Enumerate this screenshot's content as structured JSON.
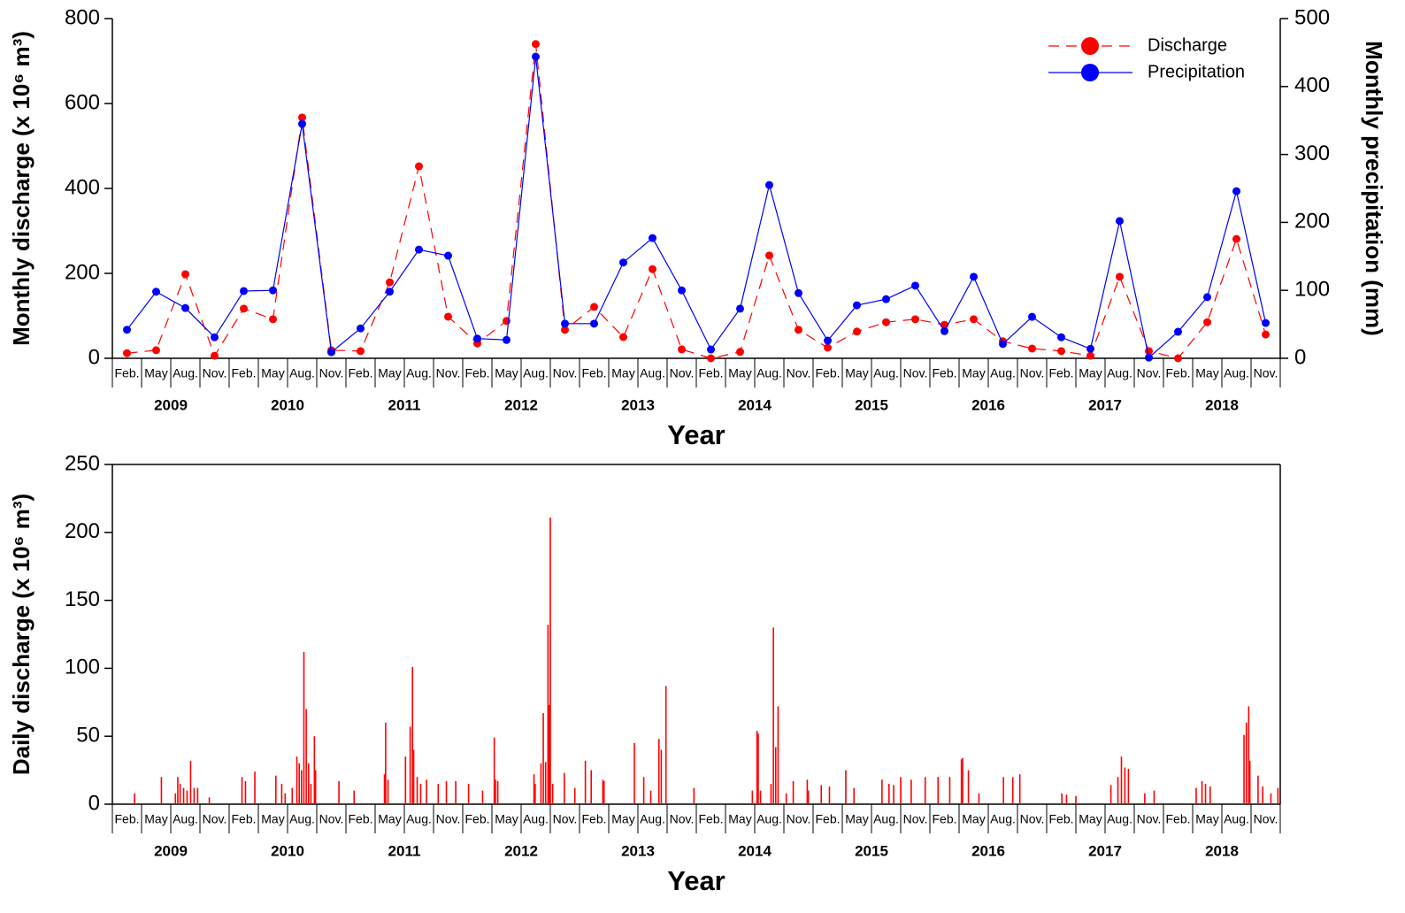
{
  "chart_data": [
    {
      "type": "line",
      "xlabel": "Year",
      "ylabel": "Monthly discharge (x 10⁶ m³)",
      "y2label": "Monthly precipitation (mm)",
      "categories": [
        "Feb.",
        "May",
        "Aug.",
        "Nov.",
        "Feb.",
        "May",
        "Aug.",
        "Nov.",
        "Feb.",
        "May",
        "Aug.",
        "Nov.",
        "Feb.",
        "May",
        "Aug.",
        "Nov.",
        "Feb.",
        "May",
        "Aug.",
        "Nov.",
        "Feb.",
        "May",
        "Aug.",
        "Nov.",
        "Feb.",
        "May",
        "Aug.",
        "Nov.",
        "Feb.",
        "May",
        "Aug.",
        "Nov.",
        "Feb.",
        "May",
        "Aug.",
        "Nov.",
        "Feb.",
        "May",
        "Aug.",
        "Nov."
      ],
      "year_labels": [
        2009,
        2010,
        2011,
        2012,
        2013,
        2014,
        2015,
        2016,
        2017,
        2018
      ],
      "ylim": [
        0,
        800
      ],
      "yticks": [
        0,
        200,
        400,
        600,
        800
      ],
      "y2lim": [
        0,
        500
      ],
      "y2ticks": [
        0,
        100,
        200,
        300,
        400,
        500
      ],
      "legend": "upper right",
      "series": [
        {
          "name": "Discharge",
          "color": "#ff0000",
          "dash": true,
          "values": [
            12,
            19,
            198,
            6,
            117,
            92,
            567,
            19,
            17,
            179,
            452,
            98,
            35,
            88,
            740,
            67,
            121,
            50,
            210,
            21,
            0,
            15,
            242,
            67,
            25,
            63,
            85,
            92,
            79,
            92,
            40,
            23,
            17,
            6,
            192,
            17,
            0,
            85,
            281,
            56
          ]
        },
        {
          "name": "Precipitation",
          "color": "#0000ff",
          "axis": "y2",
          "values": [
            42,
            98,
            74,
            31,
            99,
            100,
            345,
            9,
            44,
            98,
            160,
            151,
            29,
            27,
            444,
            51,
            51,
            141,
            177,
            100,
            13,
            73,
            255,
            96,
            26,
            78,
            87,
            107,
            40,
            120,
            21,
            61,
            31,
            14,
            202,
            1,
            39,
            90,
            246,
            52
          ]
        }
      ]
    },
    {
      "type": "bar",
      "xlabel": "Year",
      "ylabel": "Daily discharge (x 10⁶ m³)",
      "month_labels": [
        "Feb.",
        "May",
        "Aug.",
        "Nov.",
        "Feb.",
        "May",
        "Aug.",
        "Nov.",
        "Feb.",
        "May",
        "Aug.",
        "Nov.",
        "Feb.",
        "May",
        "Aug.",
        "Nov.",
        "Feb.",
        "May",
        "Aug.",
        "Nov.",
        "Feb.",
        "May",
        "Aug.",
        "Nov.",
        "Feb.",
        "May",
        "Aug.",
        "Nov.",
        "Feb.",
        "May",
        "Aug.",
        "Nov.",
        "Feb.",
        "May",
        "Aug.",
        "Nov.",
        "Feb.",
        "May",
        "Aug.",
        "Nov."
      ],
      "year_labels": [
        2009,
        2010,
        2011,
        2012,
        2013,
        2014,
        2015,
        2016,
        2017,
        2018
      ],
      "color": "#ff0000",
      "xlim": [
        2009,
        2019
      ],
      "ylim": [
        0,
        250
      ],
      "yticks": [
        0,
        50,
        100,
        150,
        200,
        250
      ],
      "x": [
        2009.19,
        2009.42,
        2009.54,
        2009.56,
        2009.58,
        2009.61,
        2009.64,
        2009.67,
        2009.7,
        2009.73,
        2009.83,
        2010.11,
        2010.14,
        2010.22,
        2010.4,
        2010.45,
        2010.48,
        2010.54,
        2010.58,
        2010.6,
        2010.62,
        2010.64,
        2010.66,
        2010.68,
        2010.7,
        2010.73,
        2010.74,
        2010.94,
        2011.07,
        2011.33,
        2011.34,
        2011.36,
        2011.51,
        2011.55,
        2011.57,
        2011.58,
        2011.61,
        2011.64,
        2011.69,
        2011.79,
        2011.86,
        2011.94,
        2012.05,
        2012.17,
        2012.27,
        2012.28,
        2012.3,
        2012.61,
        2012.62,
        2012.67,
        2012.69,
        2012.71,
        2012.73,
        2012.74,
        2012.75,
        2012.77,
        2012.87,
        2012.96,
        2013.05,
        2013.1,
        2013.2,
        2013.21,
        2013.47,
        2013.55,
        2013.61,
        2013.68,
        2013.7,
        2013.74,
        2013.98,
        2014.48,
        2014.52,
        2014.53,
        2014.55,
        2014.64,
        2014.66,
        2014.68,
        2014.7,
        2014.77,
        2014.83,
        2014.95,
        2014.96,
        2015.07,
        2015.14,
        2015.28,
        2015.35,
        2015.59,
        2015.65,
        2015.69,
        2015.75,
        2015.84,
        2015.96,
        2016.07,
        2016.17,
        2016.27,
        2016.28,
        2016.33,
        2016.42,
        2016.63,
        2016.71,
        2016.77,
        2017.13,
        2017.17,
        2017.25,
        2017.55,
        2017.61,
        2017.64,
        2017.67,
        2017.7,
        2017.84,
        2017.92,
        2018.28,
        2018.33,
        2018.36,
        2018.4,
        2018.69,
        2018.71,
        2018.73,
        2018.74,
        2018.81,
        2018.85,
        2018.92,
        2018.98
      ],
      "values": [
        8,
        20,
        8,
        20,
        15,
        12,
        10,
        32,
        12,
        12,
        5,
        20,
        17,
        24,
        21,
        15,
        8,
        12,
        35,
        30,
        25,
        112,
        70,
        30,
        15,
        50,
        25,
        17,
        10,
        22,
        60,
        18,
        35,
        57,
        101,
        40,
        20,
        15,
        18,
        15,
        17,
        17,
        15,
        10,
        49,
        18,
        17,
        22,
        15,
        30,
        67,
        31,
        132,
        73,
        211,
        15,
        23,
        12,
        32,
        25,
        18,
        17,
        45,
        20,
        10,
        48,
        40,
        87,
        12,
        10,
        54,
        52,
        10,
        15,
        130,
        42,
        72,
        8,
        17,
        18,
        10,
        14,
        13,
        25,
        12,
        18,
        15,
        14,
        20,
        18,
        20,
        20,
        20,
        33,
        34,
        25,
        8,
        20,
        20,
        22,
        8,
        7,
        6,
        14,
        20,
        35,
        27,
        26,
        8,
        10,
        12,
        17,
        15,
        13,
        51,
        60,
        72,
        32,
        21,
        13,
        8,
        12
      ]
    }
  ]
}
